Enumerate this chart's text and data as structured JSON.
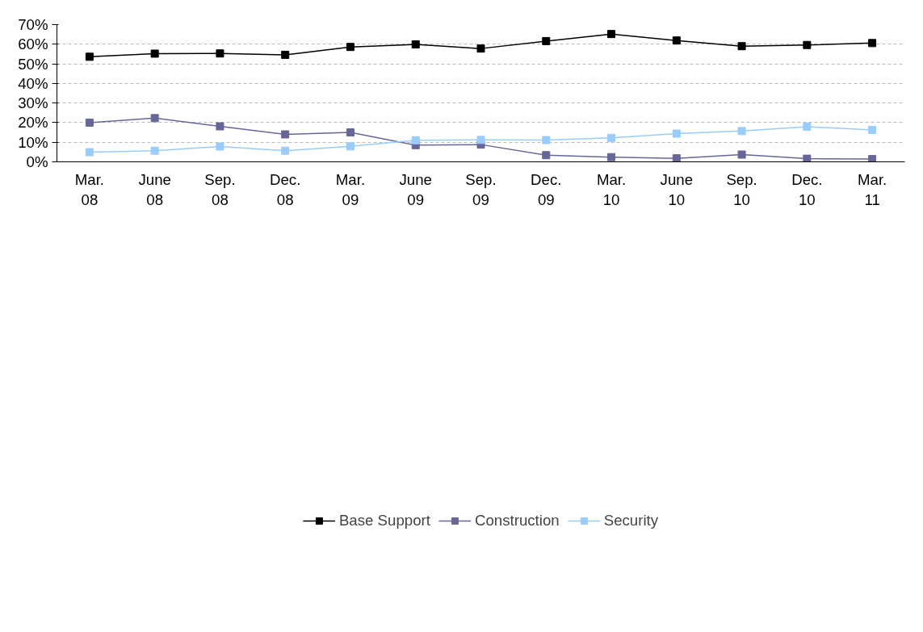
{
  "chart_data": {
    "type": "line",
    "categories": [
      "Mar.\n08",
      "June\n08",
      "Sep.\n08",
      "Dec.\n08",
      "Mar.\n09",
      "June\n09",
      "Sep.\n09",
      "Dec.\n09",
      "Mar.\n10",
      "June\n10",
      "Sep.\n10",
      "Dec.\n10",
      "Mar.\n11"
    ],
    "series": [
      {
        "name": "Base Support",
        "color": "#000000",
        "values": [
          53.6,
          55.2,
          55.3,
          54.6,
          58.6,
          59.9,
          57.8,
          61.6,
          65.2,
          61.9,
          59.0,
          59.6,
          60.6
        ]
      },
      {
        "name": "Construction",
        "color": "#666699",
        "values": [
          20.0,
          22.3,
          18.1,
          14.0,
          15.0,
          8.5,
          8.8,
          3.4,
          2.4,
          1.8,
          3.7,
          1.6,
          1.4
        ]
      },
      {
        "name": "Security",
        "color": "#99ccff",
        "values": [
          4.9,
          5.7,
          7.8,
          5.7,
          7.9,
          11.0,
          11.2,
          11.1,
          12.2,
          14.4,
          15.7,
          17.9,
          16.3
        ]
      }
    ],
    "ylim": [
      0,
      70
    ],
    "yticks": [
      {
        "value": 0,
        "label": "0%"
      },
      {
        "value": 10,
        "label": "10%"
      },
      {
        "value": 20,
        "label": "20%"
      },
      {
        "value": 30,
        "label": "30%"
      },
      {
        "value": 40,
        "label": "40%"
      },
      {
        "value": 50,
        "label": "50%"
      },
      {
        "value": 60,
        "label": "60%"
      },
      {
        "value": 70,
        "label": "70%"
      }
    ],
    "grid": "y",
    "legend": "bottom",
    "marker": "square",
    "line_style": "solid"
  }
}
